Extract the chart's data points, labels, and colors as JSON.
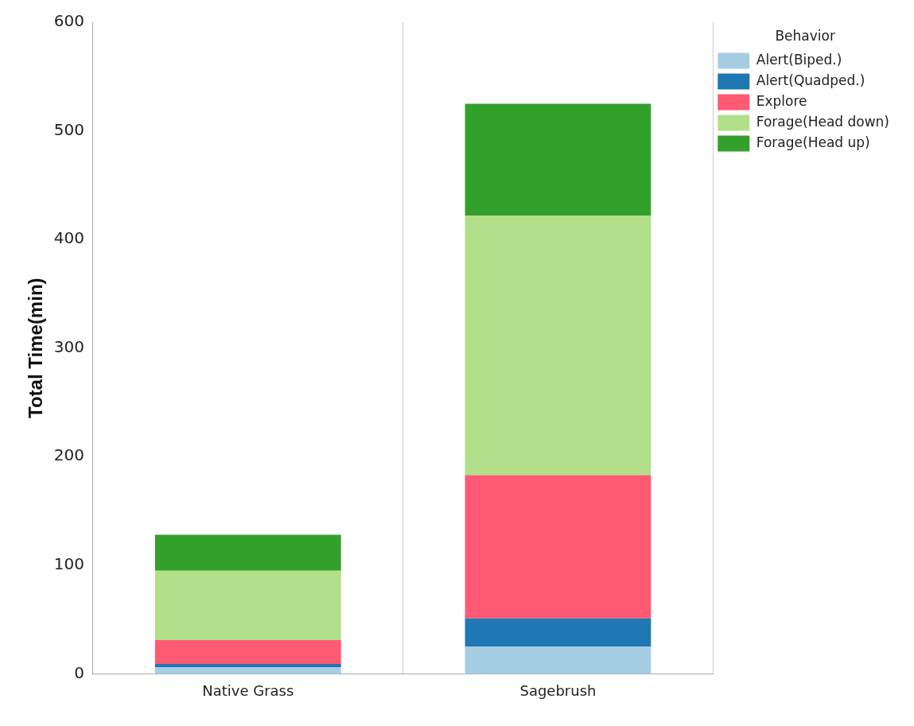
{
  "chart_data": {
    "type": "bar",
    "stacked": true,
    "ylabel": "Total Time(min)",
    "legend_title": "Behavior",
    "legend": "top right",
    "grid": "x",
    "categories": [
      "Native Grass",
      "Sagebrush"
    ],
    "ylim": [
      0,
      600
    ],
    "yticks": [
      0,
      100,
      200,
      300,
      400,
      500,
      600
    ],
    "series": [
      {
        "name": "Alert(Biped.)",
        "color": "#a6cee3",
        "values": [
          6,
          25
        ]
      },
      {
        "name": "Alert(Quadped.)",
        "color": "#1f78b4",
        "values": [
          3,
          26
        ]
      },
      {
        "name": "Explore",
        "color": "#ff5a73",
        "values": [
          22,
          132
        ]
      },
      {
        "name": "Forage(Head down)",
        "color": "#b2df8a",
        "values": [
          64,
          239
        ]
      },
      {
        "name": "Forage(Head up)",
        "color": "#33a02c",
        "values": [
          33,
          103
        ]
      }
    ]
  }
}
